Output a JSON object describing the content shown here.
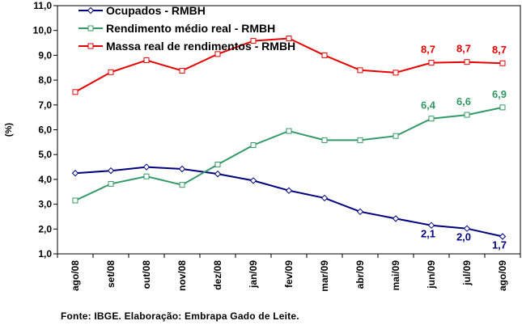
{
  "chart_data": {
    "type": "line",
    "categories": [
      "ago/08",
      "set/08",
      "out/08",
      "nov/08",
      "dez/08",
      "jan/09",
      "fev/09",
      "mar/09",
      "abr/09",
      "mai/09",
      "jun/09",
      "jul/09",
      "ago/09"
    ],
    "ylabel": "(%)",
    "xlabel": "",
    "ylim": [
      1.0,
      11.0
    ],
    "yticks": [
      "1,0",
      "2,0",
      "3,0",
      "4,0",
      "5,0",
      "6,0",
      "7,0",
      "8,0",
      "9,0",
      "10,0",
      "11,0"
    ],
    "grid": false,
    "legend": "top-left, inside plot",
    "series": [
      {
        "name": "Ocupados - RMBH",
        "color": "#00007f",
        "marker": "diamond",
        "values": [
          4.25,
          4.35,
          4.5,
          4.42,
          4.22,
          3.95,
          3.55,
          3.25,
          2.7,
          2.42,
          2.15,
          2.02,
          1.7
        ],
        "labels": [
          null,
          null,
          null,
          null,
          null,
          null,
          null,
          null,
          null,
          null,
          "2,1",
          "2,0",
          "1,7"
        ]
      },
      {
        "name": "Rendimento médio real - RMBH",
        "color": "#339966",
        "marker": "square",
        "values": [
          3.15,
          3.82,
          4.12,
          3.78,
          4.6,
          5.38,
          5.95,
          5.58,
          5.58,
          5.75,
          6.45,
          6.6,
          6.9
        ],
        "labels": [
          null,
          null,
          null,
          null,
          null,
          null,
          null,
          null,
          null,
          null,
          "6,4",
          "6,6",
          "6,9"
        ]
      },
      {
        "name": "Massa real de rendimentos - RMBH",
        "color": "#e60000",
        "marker": "square",
        "values": [
          7.52,
          8.32,
          8.8,
          8.38,
          9.05,
          9.58,
          9.68,
          9.0,
          8.4,
          8.3,
          8.7,
          8.73,
          8.68
        ],
        "labels": [
          null,
          null,
          null,
          null,
          null,
          null,
          null,
          null,
          null,
          null,
          "8,7",
          "8,7",
          "8,7"
        ]
      }
    ]
  },
  "source_note": "Fonte: IBGE. Elaboração: Embrapa Gado de Leite."
}
